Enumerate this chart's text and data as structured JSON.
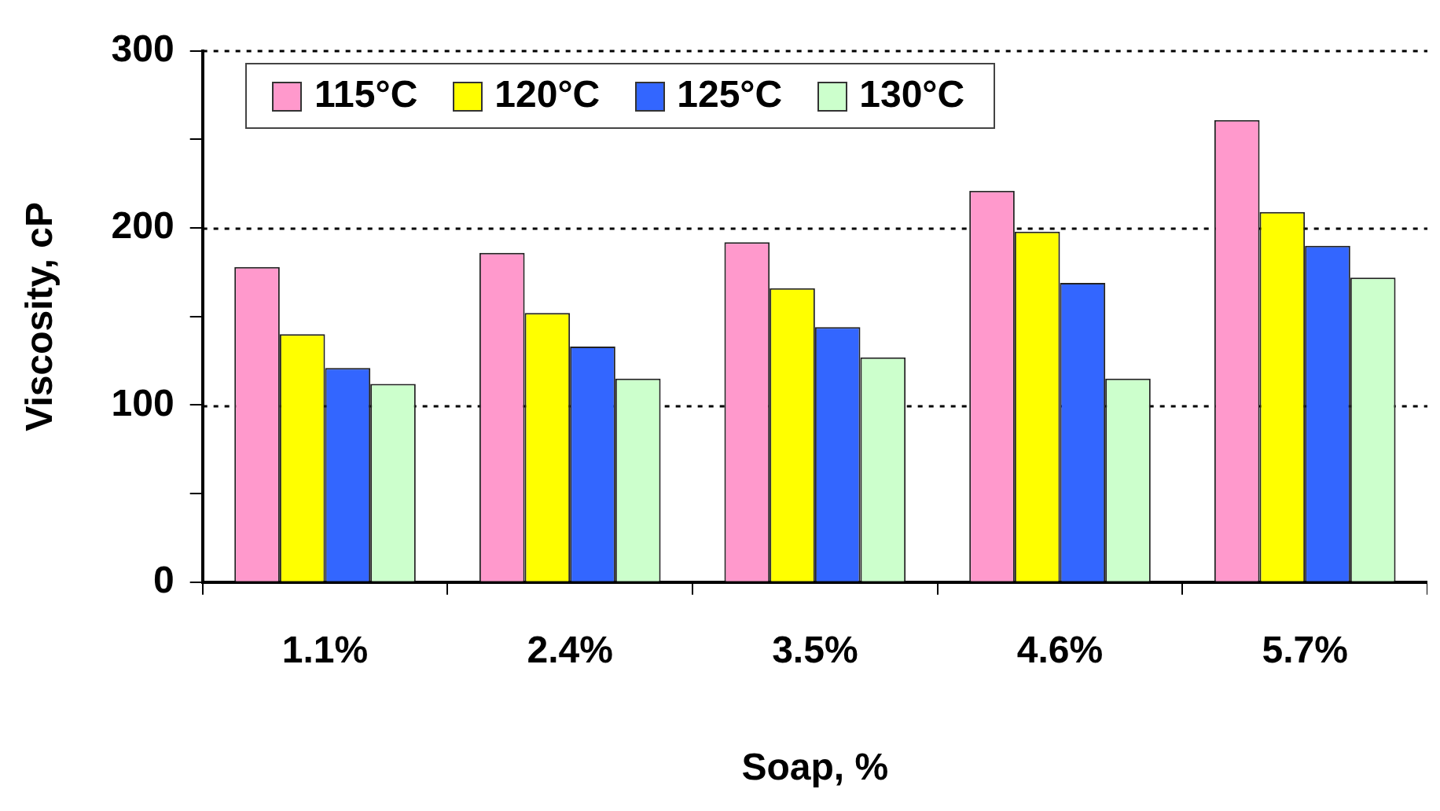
{
  "chart_data": {
    "type": "bar",
    "xlabel": "Soap, %",
    "ylabel": "Viscosity, cP",
    "categories": [
      "1.1%",
      "2.4%",
      "3.5%",
      "4.6%",
      "5.7%"
    ],
    "series": [
      {
        "name": "115°C",
        "color": "#ff99cc",
        "values": [
          178,
          186,
          192,
          221,
          261
        ]
      },
      {
        "name": "120°C",
        "color": "#ffff00",
        "values": [
          140,
          152,
          166,
          198,
          209
        ]
      },
      {
        "name": "125°C",
        "color": "#3366ff",
        "values": [
          121,
          133,
          144,
          169,
          190
        ]
      },
      {
        "name": "130°C",
        "color": "#ccffcc",
        "values": [
          112,
          115,
          127,
          115,
          172
        ]
      }
    ],
    "ylim": [
      0,
      300
    ],
    "yticks": [
      0,
      {
        "value": 50,
        "label": null
      },
      100,
      {
        "value": 150,
        "label": null
      },
      200,
      {
        "value": 250,
        "label": null
      },
      300
    ],
    "grid": "y",
    "legend": "top left"
  }
}
